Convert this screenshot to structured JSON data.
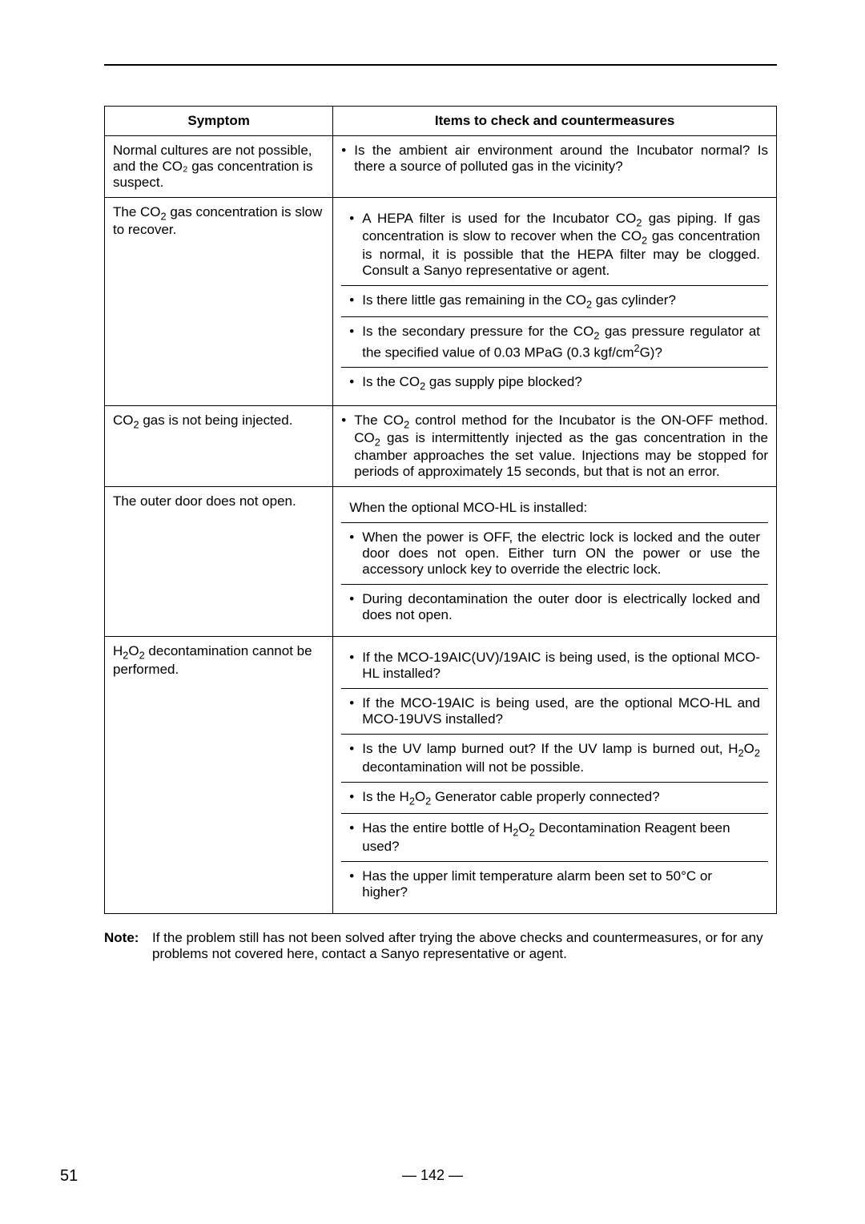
{
  "table": {
    "header": {
      "symptom": "Symptom",
      "items": "Items to check and countermeasures"
    },
    "rows": [
      {
        "symptom": "Normal cultures are not possible, and the CO₂ gas concentration is suspect.",
        "items": [
          "• Is the ambient air environment around the Incubator normal? Is there a source of polluted gas in the vicinity?"
        ]
      },
      {
        "symptom": "The CO₂ gas concentration is slow to recover.",
        "items": [
          "• A HEPA filter is used for the Incubator CO₂ gas piping. If gas concentration is slow to recover when the CO₂ gas concentration is normal, it is possible that the HEPA filter may be clogged. Consult a Sanyo representative or agent.",
          "• Is there little gas remaining in the CO₂ gas cylinder?",
          "• Is the secondary pressure for the CO₂ gas pressure regulator at the specified value of 0.03 MPaG (0.3 kgf/cm²G)?",
          "• Is the CO₂ gas supply pipe blocked?"
        ]
      },
      {
        "symptom": "CO₂ gas is not being injected.",
        "items": [
          "• The CO₂ control method for the Incubator is the ON-OFF method. CO₂ gas is intermittently injected as the gas concentration in the chamber approaches the set value. Injections may be stopped for periods of approximately 15 seconds, but that is not an error."
        ]
      },
      {
        "symptom": "The outer door does not open.",
        "items": [
          "When the optional MCO-HL is installed:",
          "• When the power is OFF, the electric lock is locked and the outer door does not open. Either turn ON the power or use the accessory unlock key to override the electric lock.",
          "• During decontamination the outer door is electrically locked and does not open."
        ]
      },
      {
        "symptom": "H₂O₂ decontamination cannot be performed.",
        "items": [
          "• If the MCO-19AIC(UV)/19AIC is being used, is the optional MCO-HL installed?",
          "• If the MCO-19AIC is being used, are the optional MCO-HL and MCO-19UVS installed?",
          "• Is the UV lamp burned out? If the UV lamp is burned out, H₂O₂ decontamination will not be possible.",
          "• Is the H₂O₂ Generator cable properly connected?",
          "• Has the entire bottle of H₂O₂ Decontamination Reagent been used?",
          "• Has the upper limit temperature alarm been set to 50°C or higher?"
        ]
      }
    ]
  },
  "note": {
    "label": "Note:",
    "text": "If the problem still has not been solved after trying the above checks and countermeasures, or for any problems not covered here, contact a Sanyo representative or agent."
  },
  "footer": {
    "page_left": "51",
    "page_center": "— 142 —"
  }
}
